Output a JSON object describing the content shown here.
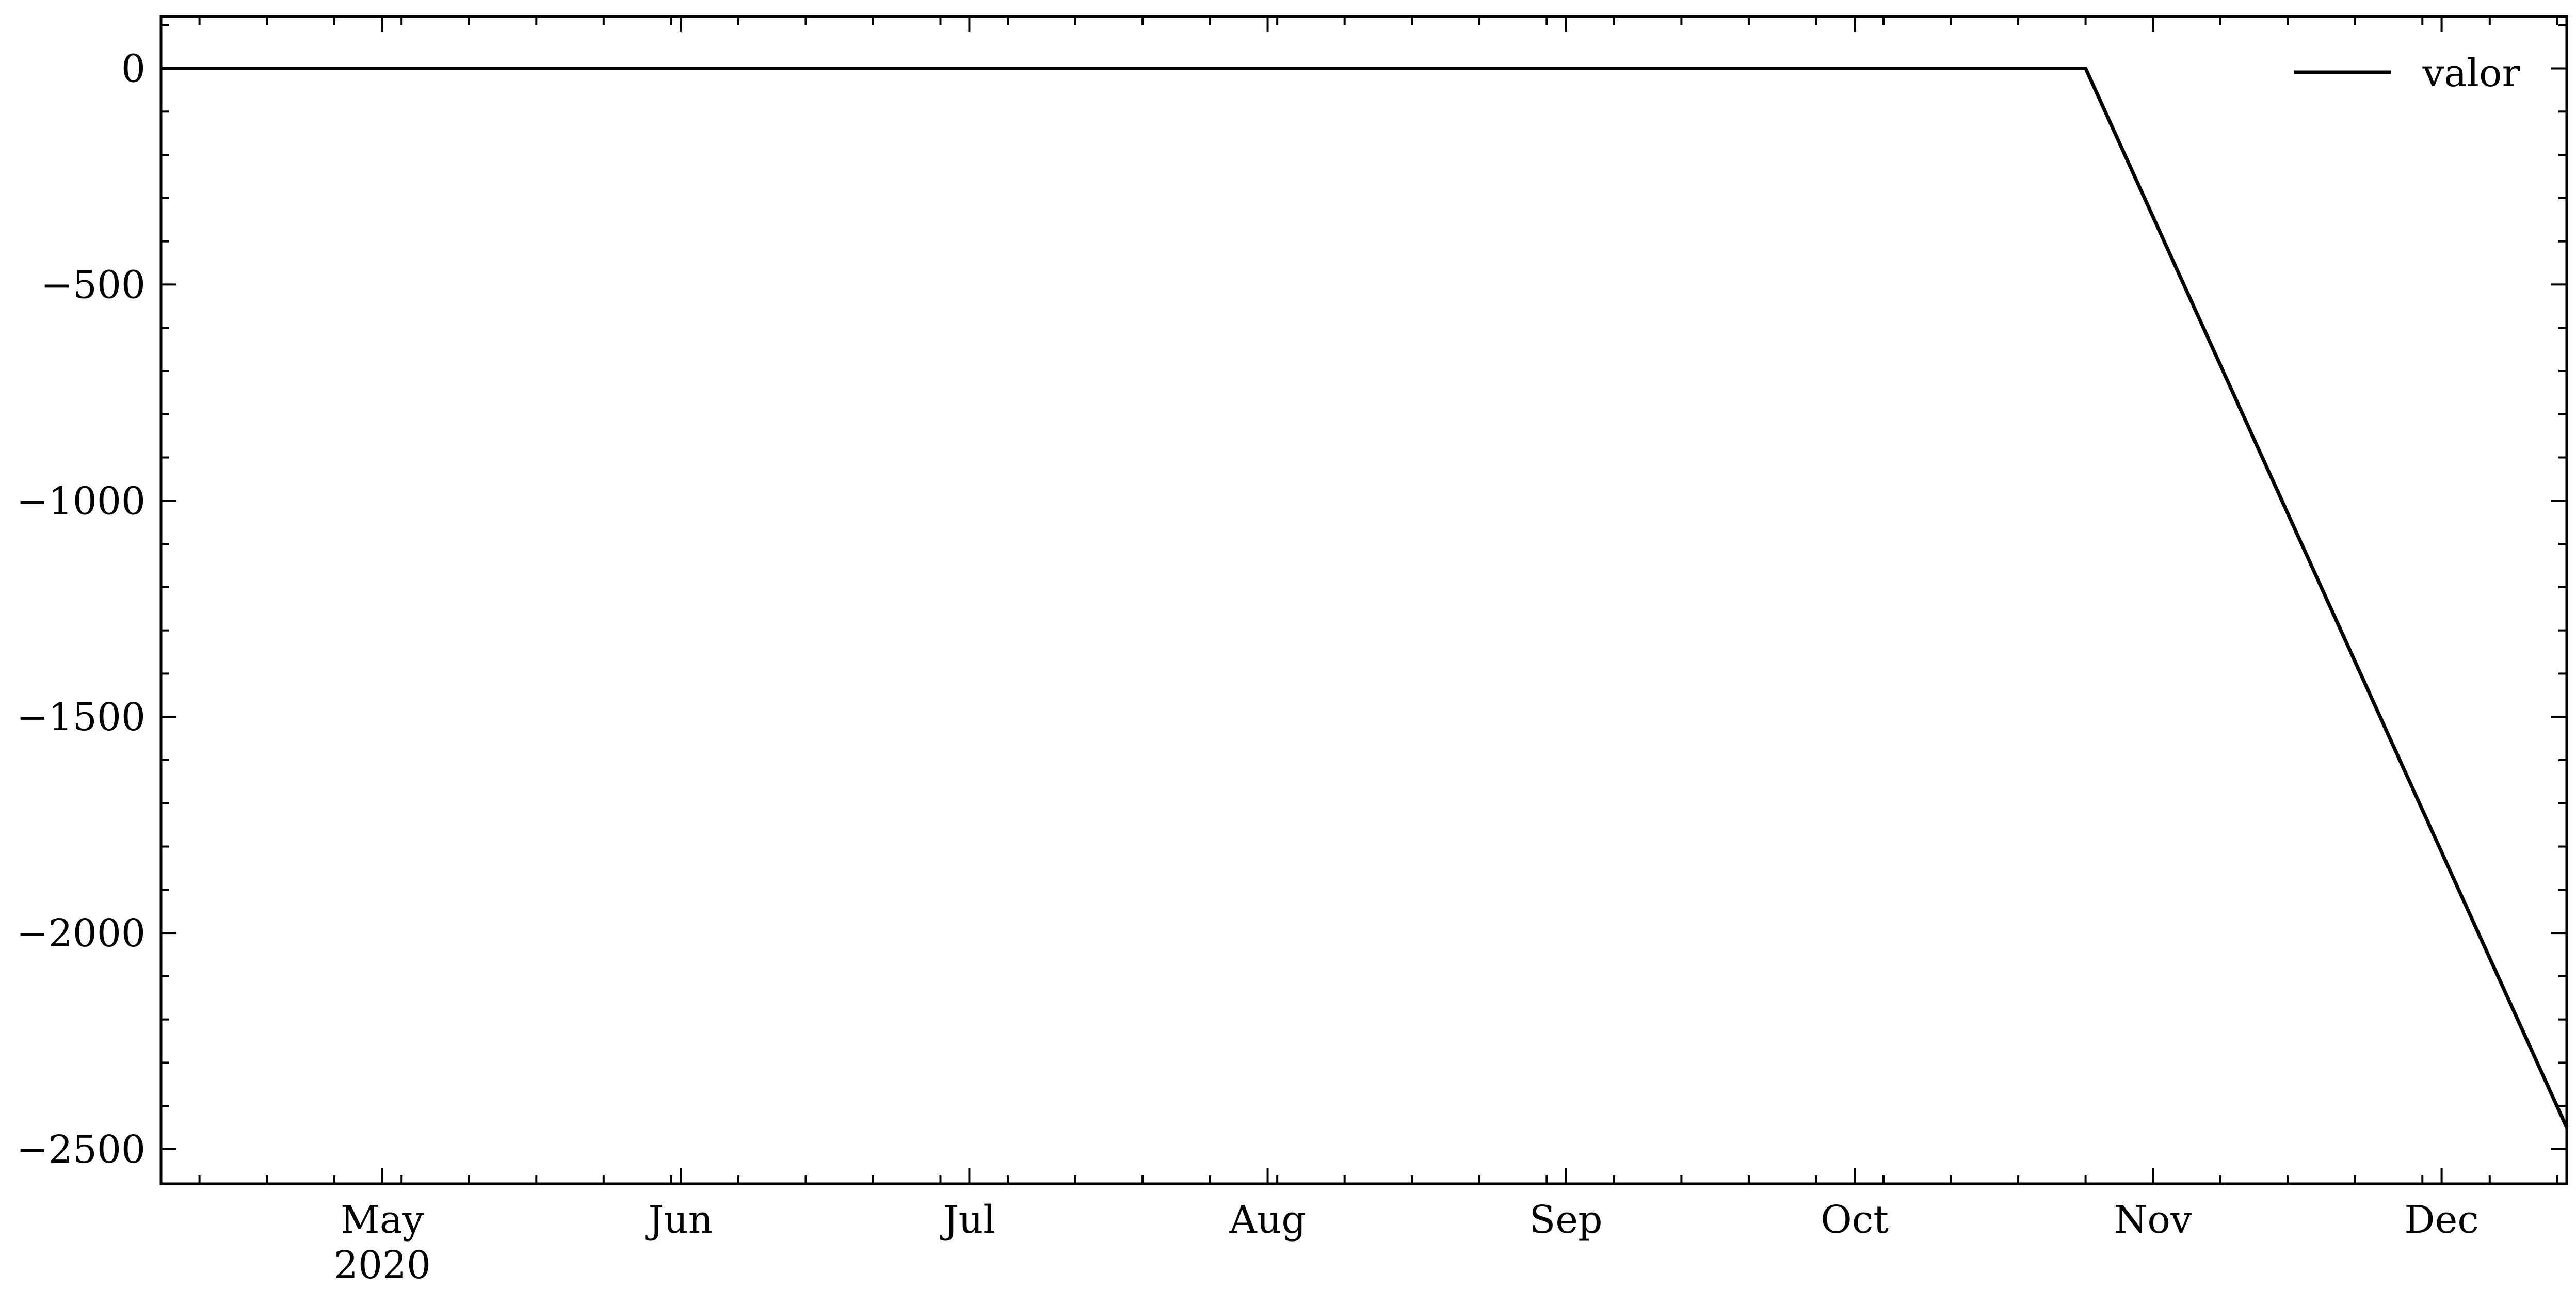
{
  "chart_data": {
    "type": "line",
    "title": "",
    "xlabel": "",
    "ylabel": "",
    "x_axis": {
      "kind": "date",
      "range": [
        "2020-04-08",
        "2020-12-14"
      ],
      "major_ticks": [
        {
          "date": "2020-05-01",
          "label": "May",
          "sublabel": "2020"
        },
        {
          "date": "2020-06-01",
          "label": "Jun"
        },
        {
          "date": "2020-07-01",
          "label": "Jul"
        },
        {
          "date": "2020-08-01",
          "label": "Aug"
        },
        {
          "date": "2020-09-01",
          "label": "Sep"
        },
        {
          "date": "2020-10-01",
          "label": "Oct"
        },
        {
          "date": "2020-11-01",
          "label": "Nov"
        },
        {
          "date": "2020-12-01",
          "label": "Dec"
        }
      ]
    },
    "y_axis": {
      "range": [
        -2580,
        120
      ],
      "ticks": [
        0,
        -500,
        -1000,
        -1500,
        -2000,
        -2500
      ],
      "tick_labels": [
        "0",
        "−500",
        "−1000",
        "−1500",
        "−2000",
        "−2500"
      ]
    },
    "grid": false,
    "legend": {
      "position": "top-right",
      "entries": [
        "valor"
      ]
    },
    "series": [
      {
        "name": "valor",
        "color": "#000000",
        "points": [
          {
            "x": "2020-04-08",
            "y": 0
          },
          {
            "x": "2020-10-25",
            "y": 0
          },
          {
            "x": "2020-12-14",
            "y": -2450
          }
        ]
      }
    ]
  }
}
